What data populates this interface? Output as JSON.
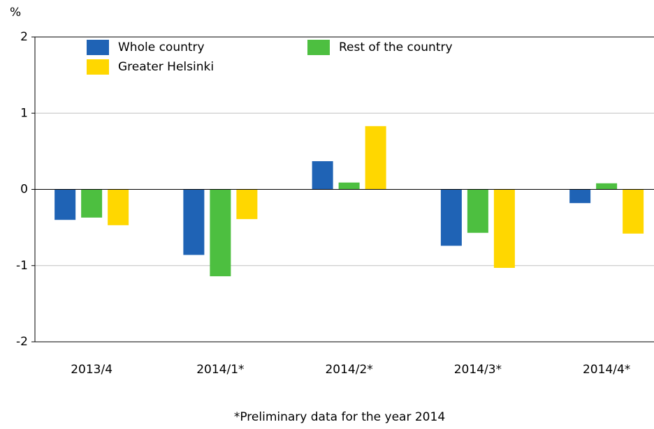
{
  "chart_data": {
    "type": "bar",
    "y_label": "%",
    "categories": [
      "2013/4",
      "2014/1*",
      "2014/2*",
      "2014/3*",
      "2014/4*"
    ],
    "series": [
      {
        "name": "Whole country",
        "color": "#1f63b5",
        "values": [
          -0.4,
          -0.86,
          0.37,
          -0.74,
          -0.18
        ]
      },
      {
        "name": "Rest of the country",
        "color": "#4dbf40",
        "values": [
          -0.37,
          -1.14,
          0.09,
          -0.57,
          0.08
        ]
      },
      {
        "name": "Greater Helsinki",
        "color": "#ffd700",
        "values": [
          -0.47,
          -0.39,
          0.83,
          -1.03,
          -0.58
        ]
      }
    ],
    "ylim": [
      -2,
      2
    ],
    "yticks": [
      -2,
      -1,
      0,
      1,
      2
    ],
    "grid": true,
    "note": "*Preliminary data for the year 2014"
  }
}
